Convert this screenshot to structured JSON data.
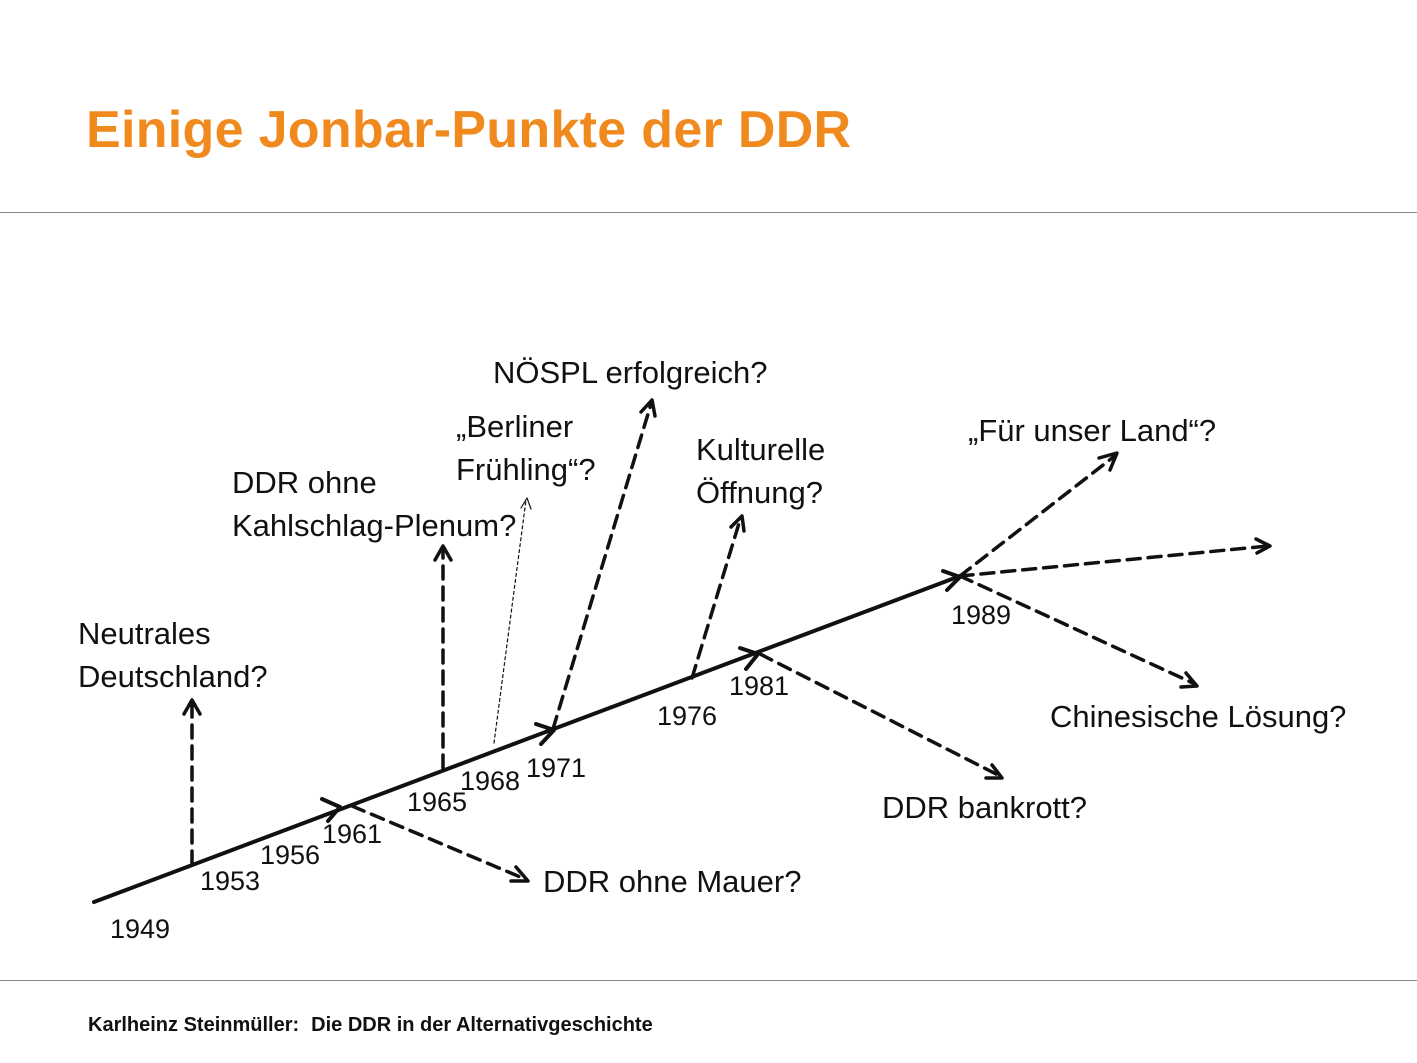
{
  "slide": {
    "title": "Einige Jonbar-Punkte der DDR",
    "footer_author": "Karlheinz Steinmüller:",
    "footer_title": "Die DDR in der Alternativgeschichte"
  },
  "years": {
    "y1949": "1949",
    "y1953": "1953",
    "y1956": "1956",
    "y1961": "1961",
    "y1965": "1965",
    "y1968": "1968",
    "y1971": "1971",
    "y1976": "1976",
    "y1981": "1981",
    "y1989": "1989"
  },
  "branches": {
    "neutral_l1": "Neutrales",
    "neutral_l2": "Deutschland?",
    "kahlschlag_l1": "DDR ohne",
    "kahlschlag_l2": "Kahlschlag-Plenum?",
    "berliner_l1": "„Berliner",
    "berliner_l2": "Frühling“?",
    "noespl": "NÖSPL erfolgreich?",
    "kultur_l1": "Kulturelle",
    "kultur_l2": "Öffnung?",
    "land": "„Für unser Land“?",
    "mauer": "DDR ohne Mauer?",
    "bankrott": "DDR bankrott?",
    "chinesisch": "Chinesische Lösung?"
  }
}
